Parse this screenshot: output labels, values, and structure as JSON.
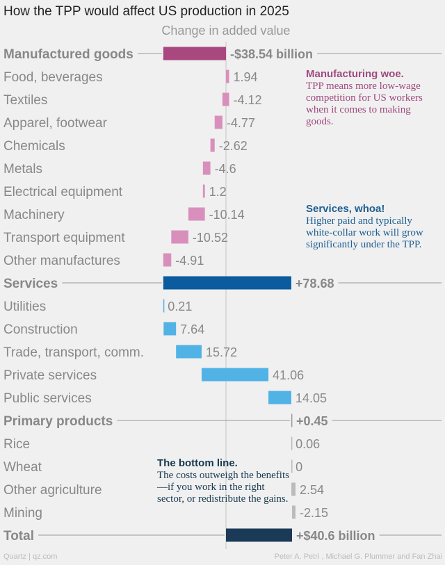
{
  "title": "How the TPP would affect US production in 2025",
  "subtitle": "Change in added value",
  "chart_data": {
    "type": "bar",
    "orientation": "horizontal",
    "layout": "waterfall",
    "unit": "billion",
    "rows": [
      {
        "label": "Manufactured goods",
        "value": -38.54,
        "display": "-$38.54 billion",
        "kind": "group",
        "color": "#a8487f"
      },
      {
        "label": "Food, beverages",
        "value": 1.94,
        "display": "1.94",
        "kind": "item",
        "color": "#d98fbb"
      },
      {
        "label": "Textiles",
        "value": -4.12,
        "display": "-4.12",
        "kind": "item",
        "color": "#d98fbb"
      },
      {
        "label": "Apparel, footwear",
        "value": -4.77,
        "display": "-4.77",
        "kind": "item",
        "color": "#d98fbb"
      },
      {
        "label": "Chemicals",
        "value": -2.62,
        "display": "-2.62",
        "kind": "item",
        "color": "#d98fbb"
      },
      {
        "label": "Metals",
        "value": -4.6,
        "display": "-4.6",
        "kind": "item",
        "color": "#d98fbb"
      },
      {
        "label": "Electrical equipment",
        "value": 1.2,
        "display": "1.2",
        "kind": "item",
        "color": "#d98fbb"
      },
      {
        "label": "Machinery",
        "value": -10.14,
        "display": "-10.14",
        "kind": "item",
        "color": "#d98fbb"
      },
      {
        "label": "Transport equipment",
        "value": -10.52,
        "display": "-10.52",
        "kind": "item",
        "color": "#d98fbb"
      },
      {
        "label": "Other manufactures",
        "value": -4.91,
        "display": "-4.91",
        "kind": "item",
        "color": "#d98fbb"
      },
      {
        "label": "Services",
        "value": 78.68,
        "display": "+78.68",
        "kind": "group",
        "color": "#0b5b9e"
      },
      {
        "label": "Utilities",
        "value": 0.21,
        "display": "0.21",
        "kind": "item",
        "color": "#51b2e6"
      },
      {
        "label": "Construction",
        "value": 7.64,
        "display": "7.64",
        "kind": "item",
        "color": "#51b2e6"
      },
      {
        "label": "Trade, transport, comm.",
        "value": 15.72,
        "display": "15.72",
        "kind": "item",
        "color": "#51b2e6"
      },
      {
        "label": "Private services",
        "value": 41.06,
        "display": "41.06",
        "kind": "item",
        "color": "#51b2e6"
      },
      {
        "label": "Public services",
        "value": 14.05,
        "display": "14.05",
        "kind": "item",
        "color": "#51b2e6"
      },
      {
        "label": "Primary products",
        "value": 0.45,
        "display": "+0.45",
        "kind": "group",
        "color": "#999999"
      },
      {
        "label": "Rice",
        "value": 0.06,
        "display": "0.06",
        "kind": "item",
        "color": "#bbbbbb"
      },
      {
        "label": "Wheat",
        "value": 0,
        "display": "0",
        "kind": "item",
        "color": "#bbbbbb"
      },
      {
        "label": "Other agriculture",
        "value": 2.54,
        "display": "2.54",
        "kind": "item",
        "color": "#bbbbbb"
      },
      {
        "label": "Mining",
        "value": -2.15,
        "display": "-2.15",
        "kind": "item",
        "color": "#bbbbbb"
      },
      {
        "label": "Total",
        "value": 40.6,
        "display": "+$40.6 billion",
        "kind": "total",
        "color": "#1b3a57"
      }
    ]
  },
  "notes": {
    "manufacturing": {
      "heading": "Manufacturing woe.",
      "body": "TPP means more low-wage competition for US workers when it comes to making goods."
    },
    "services": {
      "heading": "Services, whoa!",
      "body": "Higher paid and typically white-collar work will grow significantly under the TPP."
    },
    "bottom": {
      "heading": "The bottom line.",
      "body": "The costs outweigh the benefits—if you work in the right sector, or redistribute the gains."
    }
  },
  "footer": {
    "source": "Quartz | qz.com",
    "credit": "Peter A. Petri , Michael G. Plummer and Fan Zhai"
  }
}
